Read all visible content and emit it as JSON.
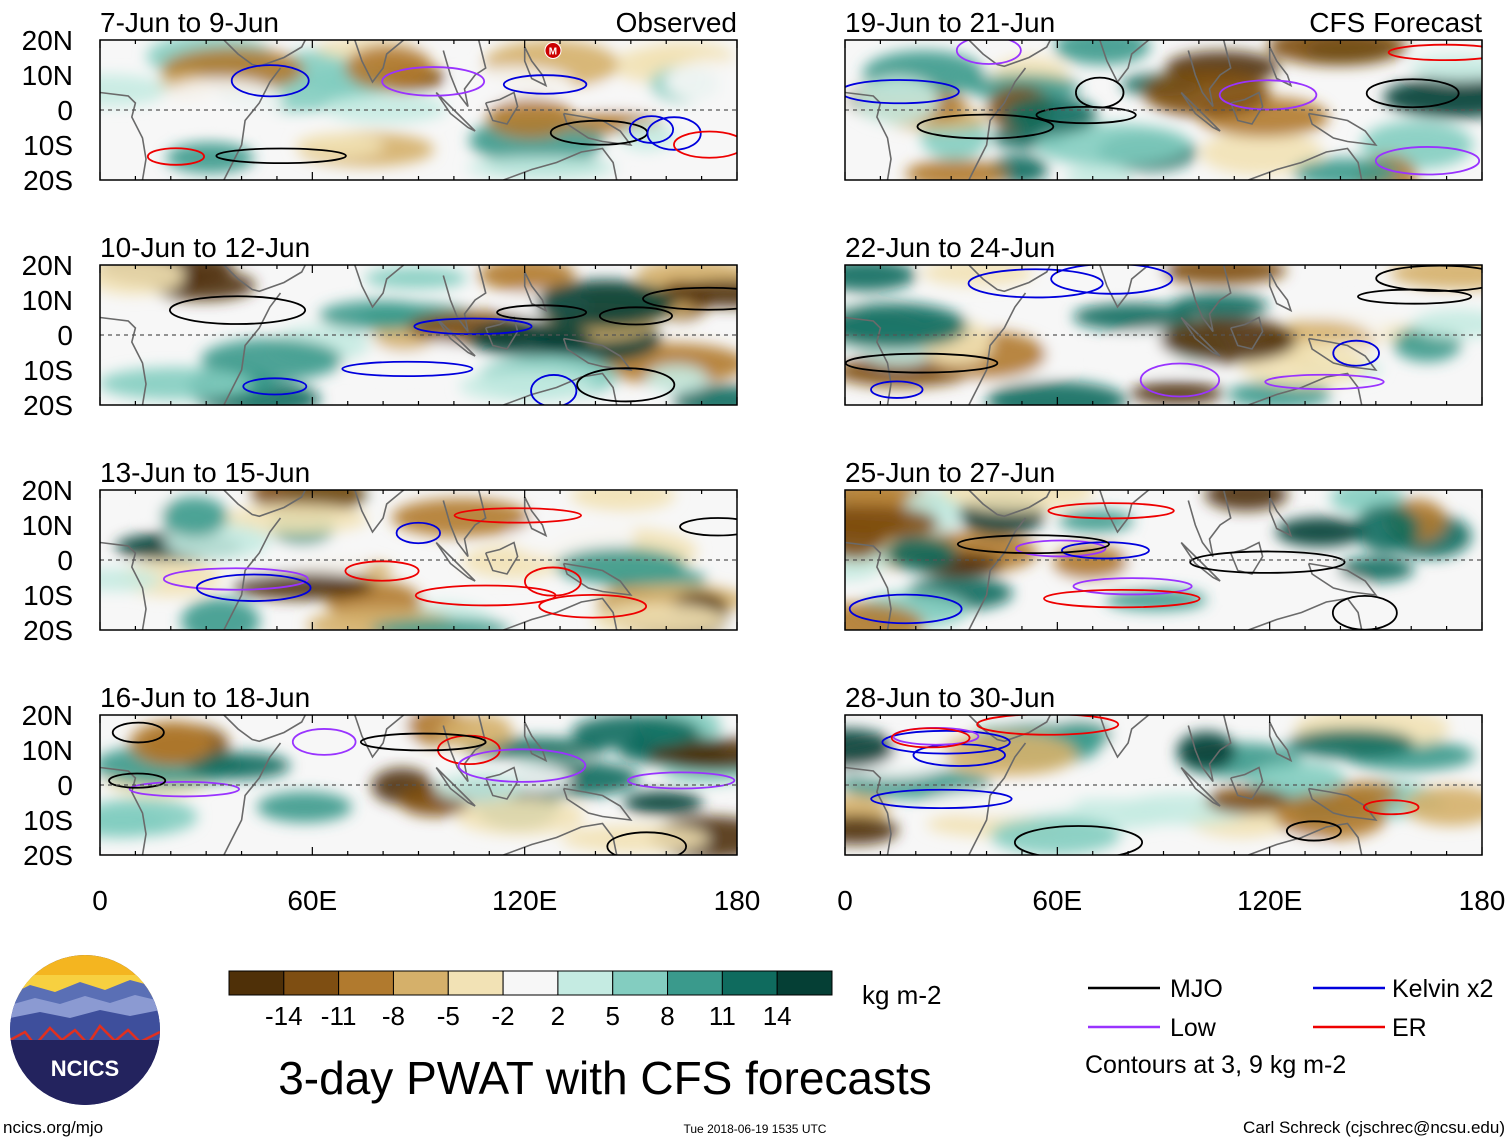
{
  "chart_data": {
    "type": "heatmap",
    "title": "3-day PWAT with CFS forecasts",
    "variable": "PWAT anomaly",
    "units": "kg m-2",
    "x_axis": {
      "range": [
        0,
        180
      ],
      "ticks": [
        0,
        60,
        120,
        180
      ],
      "tick_labels": [
        "0",
        "60E",
        "120E",
        "180"
      ]
    },
    "y_axis": {
      "range": [
        -20,
        20
      ],
      "ticks": [
        20,
        10,
        0,
        -10,
        -20
      ],
      "tick_labels": [
        "20N",
        "10N",
        "0",
        "10S",
        "20S"
      ]
    },
    "columns": [
      {
        "header": "Observed",
        "panels": [
          "7-Jun to 9-Jun",
          "10-Jun to 12-Jun",
          "13-Jun to 15-Jun",
          "16-Jun to 18-Jun"
        ]
      },
      {
        "header": "CFS Forecast",
        "panels": [
          "19-Jun to 21-Jun",
          "22-Jun to 24-Jun",
          "25-Jun to 27-Jun",
          "28-Jun to 30-Jun"
        ]
      }
    ],
    "colorbar": {
      "levels": [
        "-14",
        "-11",
        "-8",
        "-5",
        "-2",
        "2",
        "5",
        "8",
        "11",
        "14"
      ],
      "colors": [
        "#4f3008",
        "#7e4e12",
        "#b17a2e",
        "#d5b06a",
        "#f2e2b5",
        "#f7f7f7",
        "#c5ebe2",
        "#83cdc0",
        "#3a9a8c",
        "#0f6b5e",
        "#053f35"
      ],
      "units_label": "kg m-2"
    },
    "legend": {
      "items": [
        {
          "label": "MJO",
          "color": "#000000"
        },
        {
          "label": "Kelvin x2",
          "color": "#0000dd"
        },
        {
          "label": "Low",
          "color": "#9933ff"
        },
        {
          "label": "ER",
          "color": "#ee0000"
        }
      ],
      "note": "Contours at 3, 9 kg m-2"
    },
    "marker": {
      "label": "M",
      "color": "#cc0000",
      "lon": 128,
      "lat": 17
    }
  },
  "logo": {
    "text": "NCICS"
  },
  "footer": {
    "url": "ncics.org/mjo",
    "timestamp": "Tue 2018-06-19 1535 UTC",
    "credit": "Carl Schreck (cjschrec@ncsu.edu)"
  }
}
